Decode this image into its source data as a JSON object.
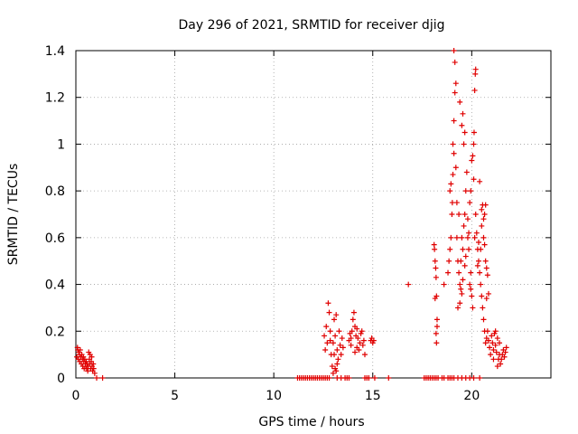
{
  "chart_data": {
    "type": "scatter",
    "title": "Day 296 of 2021, SRMTID for receiver djig",
    "xlabel": "GPS time / hours",
    "ylabel": "SRMTID / TECUs",
    "xlim": [
      0,
      24
    ],
    "ylim": [
      0,
      1.4
    ],
    "xticks": [
      0,
      5,
      10,
      15,
      20
    ],
    "xtick_labels": [
      "0",
      "5",
      "10",
      "15",
      "20"
    ],
    "yticks": [
      0,
      0.2,
      0.4,
      0.6,
      0.8,
      1,
      1.2,
      1.4
    ],
    "ytick_labels": [
      "0",
      "0.2",
      "0.4",
      "0.6",
      "0.8",
      "1",
      "1.2",
      "1.4"
    ],
    "grid": true,
    "marker": "+",
    "series": [
      {
        "name": "djig",
        "color": "#e00000",
        "points": [
          [
            0.05,
            0.09
          ],
          [
            0.08,
            0.13
          ],
          [
            0.1,
            0.12
          ],
          [
            0.12,
            0.08
          ],
          [
            0.15,
            0.11
          ],
          [
            0.18,
            0.1
          ],
          [
            0.2,
            0.07
          ],
          [
            0.22,
            0.12
          ],
          [
            0.25,
            0.09
          ],
          [
            0.28,
            0.06
          ],
          [
            0.3,
            0.1
          ],
          [
            0.33,
            0.08
          ],
          [
            0.35,
            0.05
          ],
          [
            0.38,
            0.09
          ],
          [
            0.4,
            0.07
          ],
          [
            0.42,
            0.04
          ],
          [
            0.45,
            0.08
          ],
          [
            0.48,
            0.06
          ],
          [
            0.5,
            0.05
          ],
          [
            0.52,
            0.07
          ],
          [
            0.55,
            0.04
          ],
          [
            0.58,
            0.06
          ],
          [
            0.6,
            0.03
          ],
          [
            0.62,
            0.05
          ],
          [
            0.65,
            0.11
          ],
          [
            0.68,
            0.08
          ],
          [
            0.7,
            0.06
          ],
          [
            0.72,
            0.1
          ],
          [
            0.75,
            0.04
          ],
          [
            0.78,
            0.07
          ],
          [
            0.8,
            0.09
          ],
          [
            0.82,
            0.05
          ],
          [
            0.85,
            0.03
          ],
          [
            0.88,
            0.06
          ],
          [
            0.9,
            0.04
          ],
          [
            0.95,
            0.02
          ],
          [
            1.05,
            0
          ],
          [
            1.35,
            0
          ],
          [
            11.2,
            0
          ],
          [
            11.3,
            0
          ],
          [
            11.4,
            0
          ],
          [
            11.5,
            0
          ],
          [
            11.6,
            0
          ],
          [
            11.7,
            0
          ],
          [
            11.8,
            0
          ],
          [
            11.9,
            0
          ],
          [
            12.0,
            0
          ],
          [
            12.1,
            0
          ],
          [
            12.2,
            0
          ],
          [
            12.3,
            0
          ],
          [
            12.4,
            0
          ],
          [
            12.5,
            0
          ],
          [
            12.6,
            0
          ],
          [
            12.7,
            0
          ],
          [
            12.8,
            0
          ],
          [
            13.2,
            0
          ],
          [
            13.4,
            0
          ],
          [
            13.6,
            0
          ],
          [
            13.7,
            0
          ],
          [
            13.8,
            0
          ],
          [
            14.6,
            0
          ],
          [
            14.7,
            0
          ],
          [
            14.8,
            0
          ],
          [
            15.1,
            0
          ],
          [
            15.8,
            0
          ],
          [
            17.6,
            0
          ],
          [
            17.7,
            0
          ],
          [
            17.8,
            0
          ],
          [
            17.9,
            0
          ],
          [
            18.0,
            0
          ],
          [
            18.1,
            0
          ],
          [
            18.2,
            0
          ],
          [
            18.3,
            0
          ],
          [
            18.5,
            0
          ],
          [
            18.6,
            0
          ],
          [
            18.8,
            0
          ],
          [
            18.9,
            0
          ],
          [
            19.0,
            0
          ],
          [
            19.1,
            0
          ],
          [
            19.3,
            0
          ],
          [
            19.5,
            0
          ],
          [
            19.7,
            0
          ],
          [
            19.9,
            0
          ],
          [
            20.1,
            0
          ],
          [
            20.4,
            0
          ],
          [
            12.55,
            0.18
          ],
          [
            12.6,
            0.12
          ],
          [
            12.65,
            0.22
          ],
          [
            12.7,
            0.15
          ],
          [
            12.75,
            0.32
          ],
          [
            12.8,
            0.28
          ],
          [
            12.85,
            0.2
          ],
          [
            12.9,
            0.1
          ],
          [
            12.95,
            0.05
          ],
          [
            13.0,
            0.15
          ],
          [
            13.05,
            0.25
          ],
          [
            13.1,
            0.18
          ],
          [
            13.15,
            0.27
          ],
          [
            13.2,
            0.12
          ],
          [
            13.25,
            0.08
          ],
          [
            13.3,
            0.2
          ],
          [
            13.35,
            0.14
          ],
          [
            13.4,
            0.1
          ],
          [
            13.45,
            0.17
          ],
          [
            13.5,
            0.13
          ],
          [
            13.0,
            0.02
          ],
          [
            13.1,
            0.04
          ],
          [
            13.2,
            0.06
          ],
          [
            12.85,
            0.16
          ],
          [
            13.05,
            0.1
          ],
          [
            13.15,
            0.03
          ],
          [
            13.8,
            0.16
          ],
          [
            13.85,
            0.19
          ],
          [
            13.9,
            0.14
          ],
          [
            13.95,
            0.2
          ],
          [
            14.0,
            0.25
          ],
          [
            14.05,
            0.28
          ],
          [
            14.1,
            0.22
          ],
          [
            14.15,
            0.18
          ],
          [
            14.2,
            0.13
          ],
          [
            14.25,
            0.17
          ],
          [
            14.3,
            0.12
          ],
          [
            14.35,
            0.15
          ],
          [
            14.4,
            0.19
          ],
          [
            14.45,
            0.2
          ],
          [
            14.5,
            0.14
          ],
          [
            14.55,
            0.16
          ],
          [
            14.6,
            0.1
          ],
          [
            14.1,
            0.11
          ],
          [
            14.2,
            0.21
          ],
          [
            13.9,
            0.17
          ],
          [
            14.9,
            0.16
          ],
          [
            14.95,
            0.17
          ],
          [
            15.0,
            0.15
          ],
          [
            15.05,
            0.16
          ],
          [
            16.8,
            0.4
          ],
          [
            18.1,
            0.57
          ],
          [
            18.12,
            0.55
          ],
          [
            18.15,
            0.5
          ],
          [
            18.18,
            0.47
          ],
          [
            18.2,
            0.43
          ],
          [
            18.22,
            0.35
          ],
          [
            18.25,
            0.25
          ],
          [
            18.2,
            0.19
          ],
          [
            18.22,
            0.15
          ],
          [
            18.25,
            0.22
          ],
          [
            18.15,
            0.34
          ],
          [
            18.6,
            0.4
          ],
          [
            18.8,
            0.45
          ],
          [
            18.85,
            0.5
          ],
          [
            18.9,
            0.55
          ],
          [
            18.95,
            0.6
          ],
          [
            19.0,
            0.7
          ],
          [
            19.02,
            0.75
          ],
          [
            18.9,
            0.8
          ],
          [
            18.95,
            0.83
          ],
          [
            19.05,
            0.87
          ],
          [
            19.1,
            0.96
          ],
          [
            19.05,
            1.0
          ],
          [
            19.1,
            1.1
          ],
          [
            19.15,
            1.22
          ],
          [
            19.2,
            1.26
          ],
          [
            19.15,
            1.35
          ],
          [
            19.1,
            1.4
          ],
          [
            19.2,
            0.9
          ],
          [
            19.25,
            0.6
          ],
          [
            19.3,
            0.5
          ],
          [
            19.35,
            0.45
          ],
          [
            19.4,
            0.4
          ],
          [
            19.45,
            0.38
          ],
          [
            19.5,
            0.36
          ],
          [
            19.3,
            0.3
          ],
          [
            19.4,
            0.32
          ],
          [
            19.55,
            0.55
          ],
          [
            19.6,
            0.65
          ],
          [
            19.65,
            0.7
          ],
          [
            19.7,
            0.8
          ],
          [
            19.75,
            0.88
          ],
          [
            19.6,
            1.0
          ],
          [
            19.65,
            1.05
          ],
          [
            19.5,
            1.08
          ],
          [
            19.55,
            1.13
          ],
          [
            19.4,
            1.18
          ],
          [
            19.5,
            0.6
          ],
          [
            19.45,
            0.5
          ],
          [
            19.35,
            0.7
          ],
          [
            19.25,
            0.75
          ],
          [
            19.55,
            0.42
          ],
          [
            19.65,
            0.48
          ],
          [
            19.7,
            0.52
          ],
          [
            19.8,
            0.6
          ],
          [
            19.85,
            0.62
          ],
          [
            19.9,
            0.4
          ],
          [
            19.95,
            0.38
          ],
          [
            20.0,
            0.35
          ],
          [
            20.05,
            0.3
          ],
          [
            19.95,
            0.45
          ],
          [
            19.85,
            0.55
          ],
          [
            19.8,
            0.68
          ],
          [
            19.9,
            0.75
          ],
          [
            19.95,
            0.8
          ],
          [
            20.0,
            0.93
          ],
          [
            20.05,
            0.95
          ],
          [
            20.1,
            1.0
          ],
          [
            20.12,
            1.05
          ],
          [
            20.15,
            1.23
          ],
          [
            20.18,
            1.3
          ],
          [
            20.2,
            1.32
          ],
          [
            20.1,
            0.85
          ],
          [
            20.2,
            0.7
          ],
          [
            20.15,
            0.6
          ],
          [
            20.25,
            0.62
          ],
          [
            20.3,
            0.55
          ],
          [
            20.35,
            0.5
          ],
          [
            20.4,
            0.45
          ],
          [
            20.45,
            0.4
          ],
          [
            20.5,
            0.35
          ],
          [
            20.55,
            0.3
          ],
          [
            20.6,
            0.25
          ],
          [
            20.65,
            0.2
          ],
          [
            20.7,
            0.15
          ],
          [
            20.75,
            0.17
          ],
          [
            20.4,
            0.84
          ],
          [
            20.5,
            0.72
          ],
          [
            20.55,
            0.74
          ],
          [
            20.6,
            0.68
          ],
          [
            20.65,
            0.7
          ],
          [
            20.7,
            0.74
          ],
          [
            20.6,
            0.6
          ],
          [
            20.65,
            0.57
          ],
          [
            20.7,
            0.5
          ],
          [
            20.75,
            0.47
          ],
          [
            20.8,
            0.44
          ],
          [
            20.85,
            0.36
          ],
          [
            20.75,
            0.34
          ],
          [
            20.35,
            0.58
          ],
          [
            20.3,
            0.48
          ],
          [
            20.45,
            0.55
          ],
          [
            20.5,
            0.65
          ],
          [
            20.8,
            0.2
          ],
          [
            20.85,
            0.16
          ],
          [
            20.9,
            0.13
          ],
          [
            20.95,
            0.1
          ],
          [
            21.0,
            0.18
          ],
          [
            21.05,
            0.15
          ],
          [
            21.1,
            0.12
          ],
          [
            21.15,
            0.19
          ],
          [
            21.2,
            0.14
          ],
          [
            21.25,
            0.11
          ],
          [
            21.3,
            0.17
          ],
          [
            21.35,
            0.08
          ],
          [
            21.4,
            0.1
          ],
          [
            21.45,
            0.06
          ],
          [
            21.5,
            0.08
          ],
          [
            21.55,
            0.1
          ],
          [
            21.6,
            0.12
          ],
          [
            21.65,
            0.09
          ],
          [
            21.7,
            0.11
          ],
          [
            21.75,
            0.13
          ],
          [
            21.1,
            0.08
          ],
          [
            21.2,
            0.2
          ],
          [
            21.3,
            0.05
          ],
          [
            21.4,
            0.15
          ]
        ]
      }
    ]
  }
}
